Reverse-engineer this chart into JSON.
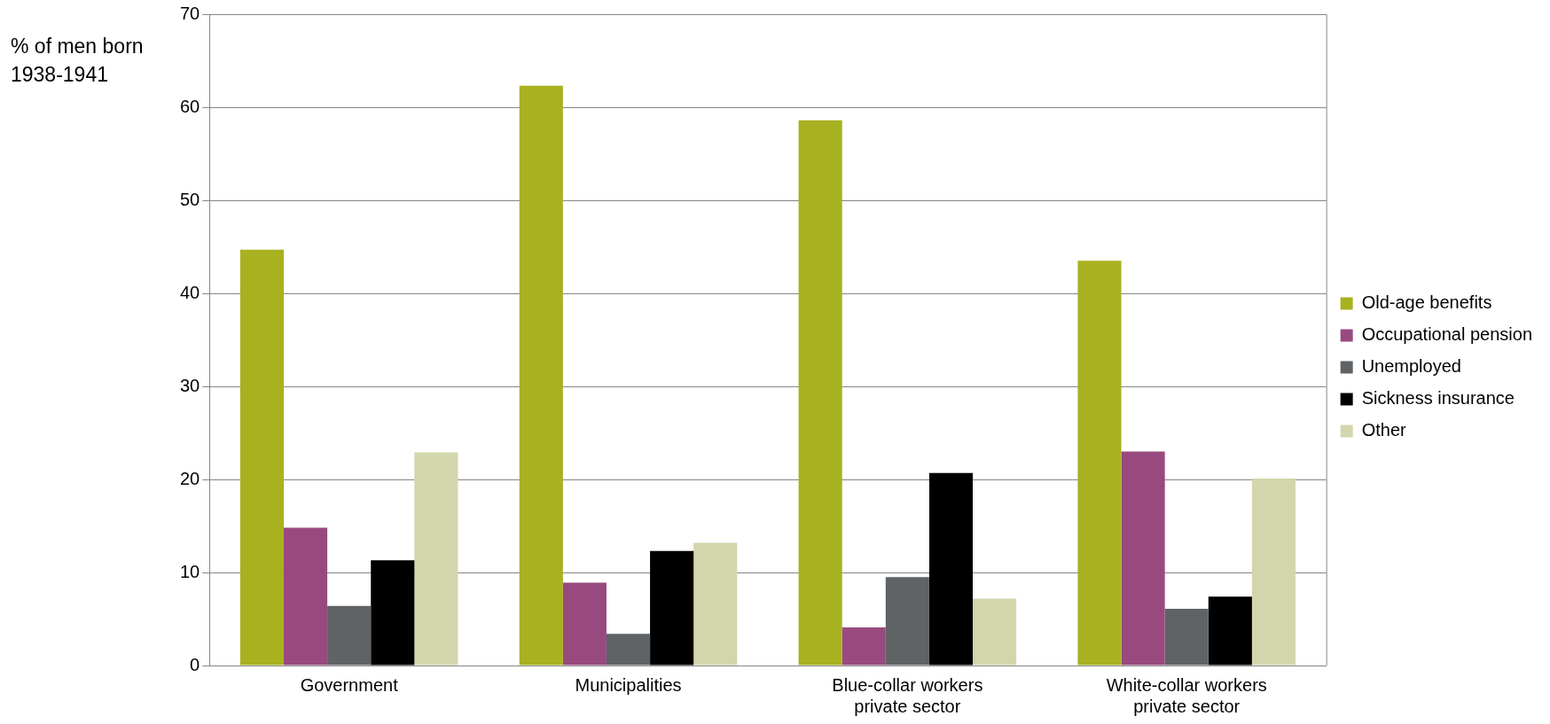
{
  "chart_data": {
    "type": "bar",
    "ylabel": "% of men born 1938-1941",
    "categories": [
      "Government",
      "Municipalities",
      "Blue-collar workers private sector",
      "White-collar workers private sector"
    ],
    "series": [
      {
        "name": "Old-age benefits",
        "color": "#a8b120",
        "values": [
          44.7,
          62.3,
          58.6,
          43.5
        ]
      },
      {
        "name": "Occupational pension",
        "color": "#984a7f",
        "values": [
          14.8,
          8.9,
          4.1,
          23.0
        ]
      },
      {
        "name": "Unemployed",
        "color": "#5f6366",
        "values": [
          6.4,
          3.4,
          9.5,
          6.1
        ]
      },
      {
        "name": "Sickness insurance",
        "color": "#000000",
        "values": [
          11.3,
          12.3,
          20.7,
          7.4
        ]
      },
      {
        "name": "Other",
        "color": "#d3d6ad",
        "values": [
          22.9,
          13.2,
          7.2,
          20.1
        ]
      }
    ],
    "ylim": [
      0,
      70
    ],
    "yticks": [
      0,
      10,
      20,
      30,
      40,
      50,
      60,
      70
    ],
    "grid": "y",
    "legend": "right"
  }
}
